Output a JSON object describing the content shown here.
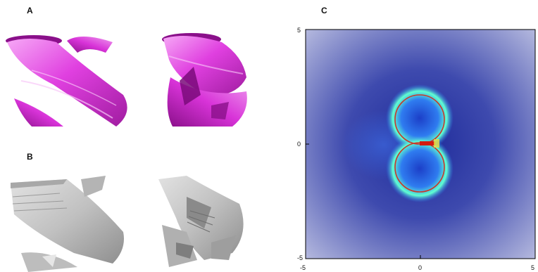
{
  "panels": {
    "a": {
      "label": "A"
    },
    "b": {
      "label": "B"
    },
    "c": {
      "label": "C"
    }
  },
  "chart_data": {
    "type": "heatmap",
    "title": "",
    "xlabel": "",
    "ylabel": "",
    "xlim": [
      -5,
      5
    ],
    "ylim": [
      -5,
      5
    ],
    "x_tick_labels": [
      "-5",
      "0",
      "5"
    ],
    "y_tick_labels": [
      "5",
      "0",
      "-5"
    ],
    "grid": false,
    "legend": "none",
    "overlay_curve": "two circles touching at origin (figure-eight), radius ≈ 1.6, centres at (0, 1.6) and (0, -1.6)",
    "colors": {
      "background": "#7f86c6",
      "low": "#1d2a9a",
      "mid": "#2f7cf0",
      "high": "#60ffd0",
      "peak": "#d31a10",
      "curve": "#c83a2a"
    }
  },
  "render_colors": {
    "helix_main": "#e040e0",
    "helix_light": "#f6a8f6",
    "helix_dark": "#8a108a",
    "grey_main": "#c0c0c0",
    "grey_light": "#dcdcdc",
    "grey_dark": "#7a7a7a"
  }
}
